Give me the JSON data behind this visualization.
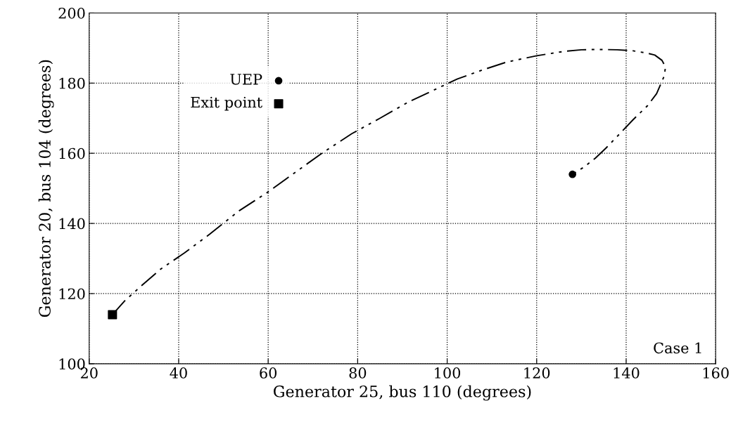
{
  "chart_data": {
    "type": "line",
    "xlabel": "Generator 25, bus 110 (degrees)",
    "ylabel": "Generator 20, bus 104 (degrees)",
    "xlim": [
      20,
      160
    ],
    "xticks": [
      20,
      40,
      60,
      80,
      100,
      120,
      140,
      160
    ],
    "ylim": [
      100,
      200
    ],
    "yticks": [
      100,
      120,
      140,
      160,
      180,
      200
    ],
    "grid": true,
    "legend": "top left",
    "series": [
      {
        "color": "#000000",
        "line_style": "dashed",
        "marker": "none",
        "x": [
          25.2,
          28,
          32,
          36,
          41.3,
          47,
          53.5,
          60,
          66.1,
          72,
          78.7,
          85,
          91.3,
          97,
          102.3,
          108,
          113.3,
          120,
          125.9,
          130,
          133.8,
          138,
          141.6,
          144.5,
          146.4,
          148,
          148.8,
          148.5,
          146.8,
          144.8,
          141.5,
          138.6,
          135.5,
          133.1,
          130.5,
          128
        ],
        "values": [
          114,
          118,
          122.6,
          127,
          131.6,
          137,
          143.6,
          149,
          154.6,
          160,
          165.6,
          170,
          174.6,
          178,
          181.2,
          183.8,
          186,
          187.8,
          189,
          189.5,
          189.6,
          189.5,
          189.2,
          188.6,
          188,
          186.5,
          184.6,
          182,
          177,
          173.6,
          169.5,
          165.6,
          161.5,
          158.6,
          156,
          154
        ]
      },
      {
        "type": "scatter",
        "name": "UEP",
        "color": "#000000",
        "marker": "circle",
        "x": [
          128
        ],
        "values": [
          154
        ]
      },
      {
        "type": "scatter",
        "name": "Exit point",
        "color": "#000000",
        "marker": "square",
        "x": [
          25.2
        ],
        "values": [
          114
        ]
      }
    ],
    "annotations": [
      "Case 1"
    ]
  }
}
